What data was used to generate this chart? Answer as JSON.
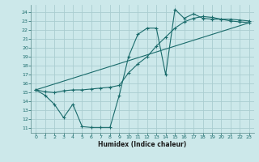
{
  "xlabel": "Humidex (Indice chaleur)",
  "bg_color": "#cce8ea",
  "grid_color": "#aacdd0",
  "line_color": "#1a6b6b",
  "xlim": [
    -0.5,
    23.5
  ],
  "ylim": [
    10.5,
    24.8
  ],
  "yticks": [
    11,
    12,
    13,
    14,
    15,
    16,
    17,
    18,
    19,
    20,
    21,
    22,
    23,
    24
  ],
  "xticks": [
    0,
    1,
    2,
    3,
    4,
    5,
    6,
    7,
    8,
    9,
    10,
    11,
    12,
    13,
    14,
    15,
    16,
    17,
    18,
    19,
    20,
    21,
    22,
    23
  ],
  "line1_x": [
    0,
    1,
    2,
    3,
    4,
    5,
    6,
    7,
    8,
    9,
    10,
    11,
    12,
    13,
    14,
    15,
    16,
    17,
    18,
    19,
    20,
    21,
    22,
    23
  ],
  "line1_y": [
    15.3,
    14.7,
    13.7,
    12.2,
    13.7,
    11.2,
    11.1,
    11.1,
    11.1,
    14.7,
    19.0,
    21.5,
    22.2,
    22.2,
    17.0,
    24.3,
    23.3,
    23.8,
    23.3,
    23.2,
    23.2,
    23.2,
    23.1,
    23.0
  ],
  "line2_x": [
    0,
    1,
    2,
    3,
    4,
    5,
    6,
    7,
    8,
    9,
    10,
    11,
    12,
    13,
    14,
    15,
    16,
    17,
    18,
    19,
    20,
    21,
    22,
    23
  ],
  "line2_y": [
    15.3,
    15.1,
    15.0,
    15.2,
    15.3,
    15.3,
    15.4,
    15.5,
    15.6,
    15.8,
    17.2,
    18.2,
    19.0,
    20.2,
    21.2,
    22.2,
    22.9,
    23.3,
    23.5,
    23.4,
    23.2,
    23.0,
    22.9,
    22.8
  ],
  "line3_x": [
    0,
    23
  ],
  "line3_y": [
    15.3,
    22.8
  ]
}
